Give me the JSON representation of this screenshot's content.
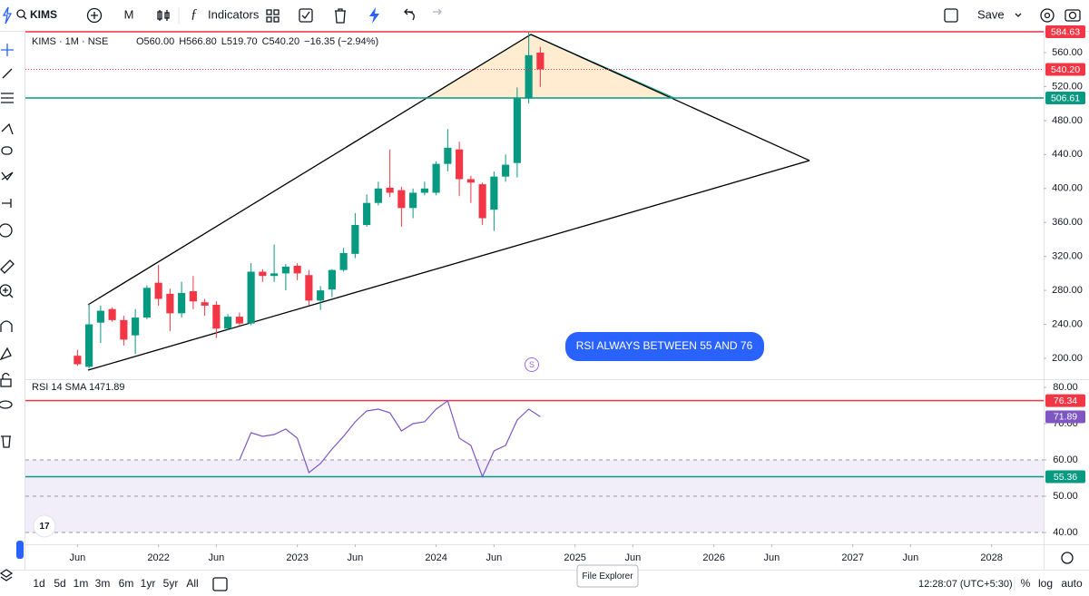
{
  "ui": {
    "symbol": "KIMS",
    "interval": "M",
    "indicators": "Indicators",
    "save": "Save",
    "ranges": [
      "1d",
      "5d",
      "1m",
      "3m",
      "6m",
      "1yr",
      "5yr",
      "All"
    ],
    "clock": "12:28:07 (UTC+5:30)",
    "scale_options": [
      "%",
      "log",
      "auto"
    ],
    "tooltip": "File Explorer"
  },
  "chart_data": [
    {
      "type": "candlestick",
      "title": "KIMS · 1M · NSE",
      "ohlc_labels": [
        "O560.00",
        "H566.80",
        "L519.70",
        "C540.20",
        "−16.35 (−2.94%)"
      ],
      "x": [
        "2021-06",
        "2021-07",
        "2021-08",
        "2021-09",
        "2021-10",
        "2021-11",
        "2021-12",
        "2022-01",
        "2022-02",
        "2022-03",
        "2022-04",
        "2022-05",
        "2022-06",
        "2022-07",
        "2022-08",
        "2022-09",
        "2022-10",
        "2022-11",
        "2022-12",
        "2023-01",
        "2023-02",
        "2023-03",
        "2023-04",
        "2023-05",
        "2023-06",
        "2023-07",
        "2023-08",
        "2023-09",
        "2023-10",
        "2023-11",
        "2023-12",
        "2024-01",
        "2024-02",
        "2024-03",
        "2024-04",
        "2024-05",
        "2024-06",
        "2024-07",
        "2024-08",
        "2024-09",
        "2024-10"
      ],
      "open": [
        203,
        190,
        242,
        258,
        245,
        227,
        248,
        289,
        276,
        253,
        279,
        266,
        263,
        235,
        249,
        241,
        302,
        297,
        300,
        309,
        298,
        268,
        281,
        304,
        323,
        357,
        383,
        401,
        398,
        377,
        395,
        395,
        429,
        446,
        411,
        405,
        375,
        414,
        430,
        506,
        560
      ],
      "high": [
        210,
        264,
        262,
        260,
        250,
        258,
        286,
        310,
        282,
        290,
        297,
        270,
        267,
        252,
        254,
        312,
        305,
        334,
        311,
        312,
        304,
        285,
        305,
        330,
        371,
        393,
        408,
        446,
        402,
        400,
        408,
        432,
        470,
        455,
        415,
        407,
        420,
        440,
        519,
        584.63,
        566.8
      ],
      "low": [
        191,
        188,
        218,
        243,
        215,
        205,
        246,
        262,
        232,
        248,
        258,
        250,
        224,
        233,
        239,
        239,
        290,
        290,
        280,
        292,
        262,
        257,
        272,
        302,
        318,
        355,
        380,
        390,
        355,
        365,
        392,
        392,
        420,
        391,
        383,
        357,
        350,
        408,
        413,
        500,
        519.7
      ],
      "close": [
        193,
        240,
        256,
        245,
        222,
        248,
        283,
        270,
        253,
        277,
        267,
        262,
        235,
        249,
        241,
        302,
        297,
        300,
        308,
        300,
        268,
        280,
        304,
        324,
        357,
        383,
        400,
        395,
        377,
        395,
        400,
        429,
        448,
        411,
        407,
        365,
        414,
        428,
        506,
        557,
        540.2
      ],
      "up_color": "#089981",
      "down_color": "#f23645",
      "xlim": [
        "2021-02",
        "2028-05"
      ],
      "xticks": [
        {
          "value": "2021-06",
          "label": "Jun"
        },
        {
          "value": "2022-01",
          "label": "2022"
        },
        {
          "value": "2022-06",
          "label": "Jun"
        },
        {
          "value": "2023-01",
          "label": "2023"
        },
        {
          "value": "2023-06",
          "label": "Jun"
        },
        {
          "value": "2024-01",
          "label": "2024"
        },
        {
          "value": "2024-06",
          "label": "Jun"
        },
        {
          "value": "2025-01",
          "label": "2025"
        },
        {
          "value": "2025-06",
          "label": "Jun"
        },
        {
          "value": "2026-01",
          "label": "2026"
        },
        {
          "value": "2026-06",
          "label": "Jun"
        },
        {
          "value": "2027-01",
          "label": "2027"
        },
        {
          "value": "2027-06",
          "label": "Jun"
        },
        {
          "value": "2028-01",
          "label": "2028"
        }
      ],
      "ylim": [
        175.4,
        584.6
      ],
      "yticks": [
        {
          "value": 200,
          "label": "200.00"
        },
        {
          "value": 240,
          "label": "240.00"
        },
        {
          "value": 280,
          "label": "280.00"
        },
        {
          "value": 320,
          "label": "320.00"
        },
        {
          "value": 360,
          "label": "360.00"
        },
        {
          "value": 400,
          "label": "400.00"
        },
        {
          "value": 440,
          "label": "440.00"
        },
        {
          "value": 480,
          "label": "480.00"
        },
        {
          "value": 520,
          "label": "520.00"
        },
        {
          "value": 560,
          "label": "560.00"
        }
      ],
      "levels": [
        {
          "value": 584.63,
          "color": "#f23645"
        },
        {
          "value": 540.2,
          "label": "540.20",
          "color": "#f23645",
          "dotted": true
        },
        {
          "value": 506.61,
          "color": "#089981"
        }
      ],
      "annotation": "RSI ALWAYS BETWEEN 55 AND 76"
    },
    {
      "type": "line",
      "title": "RSI 14 SMA 14",
      "x": [
        "2021-06",
        "2021-07",
        "2021-08",
        "2021-09",
        "2021-10",
        "2021-11",
        "2021-12",
        "2022-01",
        "2022-02",
        "2022-03",
        "2022-04",
        "2022-05",
        "2022-06",
        "2022-07",
        "2022-08",
        "2022-09",
        "2022-10",
        "2022-11",
        "2022-12",
        "2023-01",
        "2023-02",
        "2023-03",
        "2023-04",
        "2023-05",
        "2023-06",
        "2023-07",
        "2023-08",
        "2023-09",
        "2023-10",
        "2023-11",
        "2023-12",
        "2024-01",
        "2024-02",
        "2024-03",
        "2024-04",
        "2024-05",
        "2024-06",
        "2024-07",
        "2024-08",
        "2024-09",
        "2024-10"
      ],
      "values": [
        null,
        null,
        null,
        null,
        null,
        null,
        null,
        null,
        null,
        null,
        null,
        null,
        null,
        null,
        60,
        67.5,
        66.5,
        67,
        68.5,
        66,
        56.5,
        59,
        63,
        66.5,
        70.5,
        73.5,
        74,
        73,
        68,
        70,
        70.5,
        74,
        76.3,
        66,
        64,
        55.4,
        62.5,
        64,
        71,
        74,
        71.89
      ],
      "color": "#7e57c2",
      "xlim": [
        "2021-02",
        "2028-05"
      ],
      "ylim": [
        36.75,
        82.25
      ],
      "yticks": [
        {
          "value": 40,
          "label": "40.00"
        },
        {
          "value": 50,
          "label": "50.00"
        },
        {
          "value": 60,
          "label": "60.00"
        },
        {
          "value": 70,
          "label": "70.00"
        },
        {
          "value": 80,
          "label": "80.00"
        }
      ],
      "band": [
        40,
        60
      ],
      "guides": [
        40,
        50,
        60
      ],
      "levels": [
        {
          "value": 76.34,
          "color": "#f23645"
        },
        {
          "value": 55.36,
          "color": "#089981"
        }
      ]
    }
  ]
}
